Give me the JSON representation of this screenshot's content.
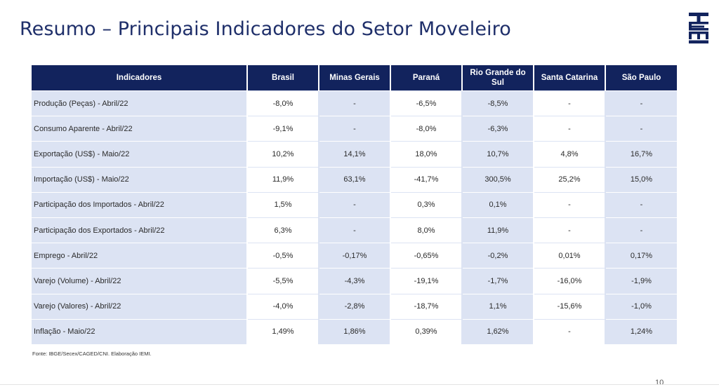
{
  "title": "Resumo – Principais Indicadores do Setor Moveleiro",
  "logo": {
    "text": "IEMI",
    "color": "#12235d"
  },
  "table": {
    "headers": [
      "Indicadores",
      "Brasil",
      "Minas Gerais",
      "Paraná",
      "Rio Grande do Sul",
      "Santa Catarina",
      "São Paulo"
    ],
    "rows": [
      [
        "Produção (Peças) - Abril/22",
        "-8,0%",
        "-",
        "-6,5%",
        "-8,5%",
        "-",
        "-"
      ],
      [
        "Consumo Aparente - Abril/22",
        "-9,1%",
        "-",
        "-8,0%",
        "-6,3%",
        "-",
        "-"
      ],
      [
        "Exportação (US$) - Maio/22",
        "10,2%",
        "14,1%",
        "18,0%",
        "10,7%",
        "4,8%",
        "16,7%"
      ],
      [
        "Importação (US$) - Maio/22",
        "11,9%",
        "63,1%",
        "-41,7%",
        "300,5%",
        "25,2%",
        "15,0%"
      ],
      [
        "Participação dos Importados - Abril/22",
        "1,5%",
        "-",
        "0,3%",
        "0,1%",
        "-",
        "-"
      ],
      [
        "Participação dos Exportados - Abril/22",
        "6,3%",
        "-",
        "8,0%",
        "11,9%",
        "-",
        "-"
      ],
      [
        "Emprego - Abril/22",
        "-0,5%",
        "-0,17%",
        "-0,65%",
        "-0,2%",
        "0,01%",
        "0,17%"
      ],
      [
        "Varejo (Volume) - Abril/22",
        "-5,5%",
        "-4,3%",
        "-19,1%",
        "-1,7%",
        "-16,0%",
        "-1,9%"
      ],
      [
        "Varejo (Valores) - Abril/22",
        "-4,0%",
        "-2,8%",
        "-18,7%",
        "1,1%",
        "-15,6%",
        "-1,0%"
      ],
      [
        "Inflação - Maio/22",
        "1,49%",
        "1,86%",
        "0,39%",
        "1,62%",
        "-",
        "1,24%"
      ]
    ]
  },
  "source": "Fonte: IBGE/Secex/CAGED/CNI. Elaboração IEMI.",
  "page_number": "10",
  "colors": {
    "header_bg": "#12235d",
    "title": "#1f2f6a",
    "band": "#dce3f3"
  }
}
